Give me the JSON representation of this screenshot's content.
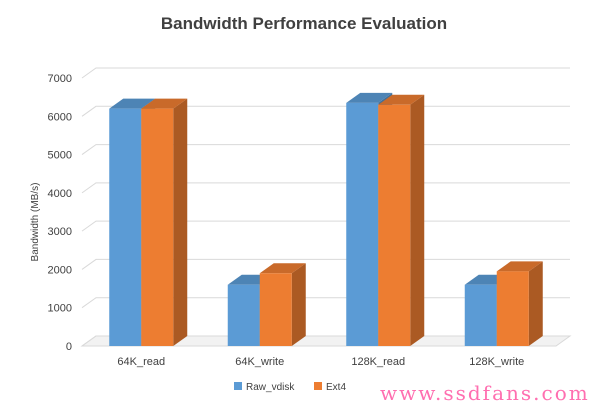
{
  "chart_data": {
    "type": "bar",
    "title": "Bandwidth Performance Evaluation",
    "xlabel": "",
    "ylabel": "Bandwidth (MB/s)",
    "categories": [
      "64K_read",
      "64K_write",
      "128K_read",
      "128K_write"
    ],
    "series": [
      {
        "name": "Raw_vdisk",
        "values": [
          6200,
          1600,
          6350,
          1600
        ],
        "color": "#5b9bd5"
      },
      {
        "name": "Ext4",
        "values": [
          6200,
          1900,
          6300,
          1950
        ],
        "color": "#ed7d31"
      }
    ],
    "ylim": [
      0,
      7000
    ],
    "yticks": [
      0,
      1000,
      2000,
      3000,
      4000,
      5000,
      6000,
      7000
    ],
    "grid": true,
    "legend_position": "bottom",
    "style": "3d-column"
  },
  "watermark": "www.ssdfans.com"
}
